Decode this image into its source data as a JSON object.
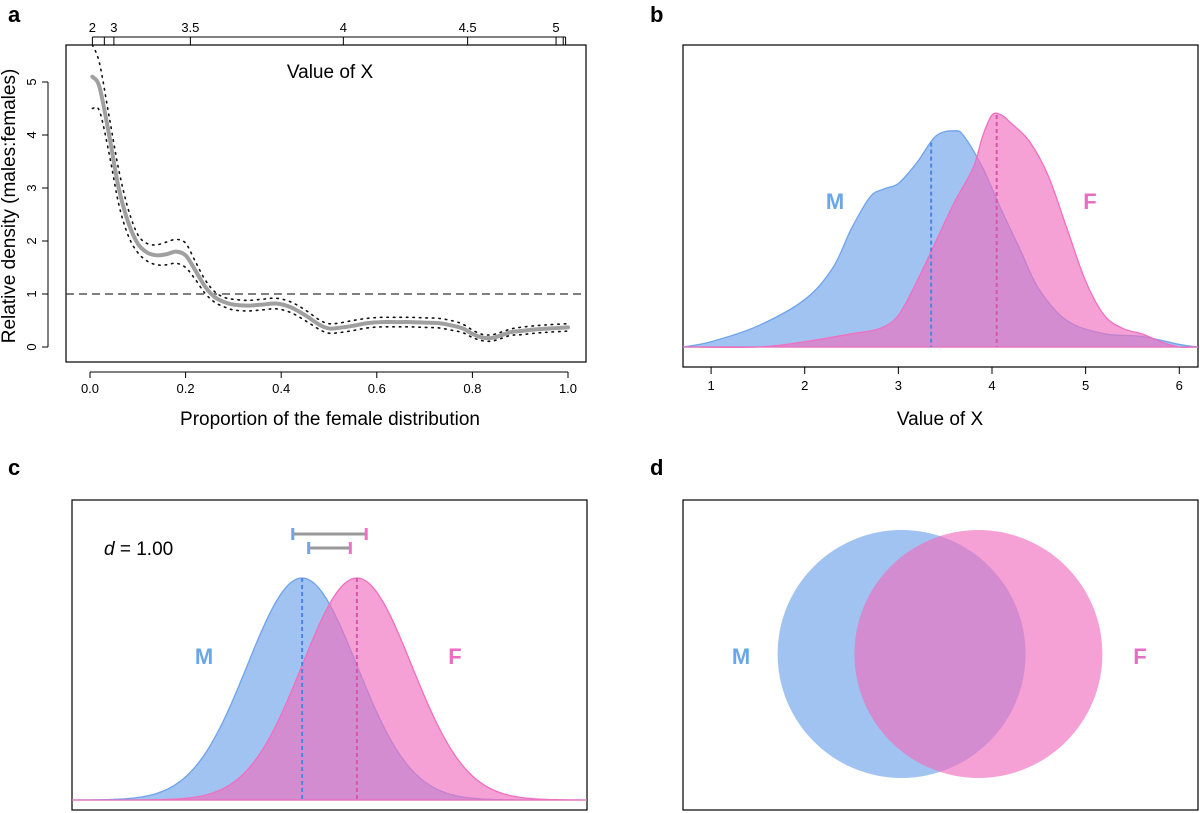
{
  "colors": {
    "male": "#6fa3ea",
    "female": "#f06fbe",
    "male_label": "#6aa6e8",
    "female_label": "#e86dc3",
    "curve": "#a0a0a0",
    "axis": "#000000"
  },
  "chart_data": [
    {
      "panel": "a",
      "type": "line",
      "xlabel": "Proportion of the female distribution",
      "ylabel": "Relative density (males:females)",
      "top_axis_label": "Value of X",
      "xlim": [
        0.0,
        1.0
      ],
      "ylim": [
        0,
        5.5
      ],
      "x_ticks": [
        "0.0",
        "0.2",
        "0.4",
        "0.6",
        "0.8",
        "1.0"
      ],
      "y_ticks": [
        "0",
        "1",
        "2",
        "3",
        "4",
        "5"
      ],
      "top_ticks": [
        {
          "label": "2",
          "x": 0.005
        },
        {
          "label": "3",
          "x": 0.05
        },
        {
          "label": "3.5",
          "x": 0.21
        },
        {
          "label": "4",
          "x": 0.53
        },
        {
          "label": "4.5",
          "x": 0.79
        },
        {
          "label": "5",
          "x": 0.975
        }
      ],
      "top_extra_ticks": [
        0.03,
        0.99,
        0.995
      ],
      "reference_line": 1,
      "x": [
        0.005,
        0.02,
        0.04,
        0.06,
        0.08,
        0.1,
        0.12,
        0.14,
        0.16,
        0.18,
        0.2,
        0.22,
        0.24,
        0.26,
        0.28,
        0.3,
        0.33,
        0.36,
        0.39,
        0.42,
        0.45,
        0.48,
        0.5,
        0.52,
        0.55,
        0.58,
        0.61,
        0.64,
        0.67,
        0.7,
        0.73,
        0.76,
        0.78,
        0.8,
        0.82,
        0.84,
        0.86,
        0.88,
        0.9,
        0.93,
        0.96,
        1.0
      ],
      "y": [
        5.1,
        4.9,
        4.0,
        3.0,
        2.35,
        1.95,
        1.78,
        1.73,
        1.75,
        1.8,
        1.73,
        1.45,
        1.15,
        0.95,
        0.85,
        0.8,
        0.78,
        0.8,
        0.82,
        0.75,
        0.6,
        0.42,
        0.35,
        0.36,
        0.4,
        0.45,
        0.47,
        0.47,
        0.47,
        0.46,
        0.45,
        0.4,
        0.35,
        0.25,
        0.18,
        0.17,
        0.22,
        0.28,
        0.3,
        0.33,
        0.35,
        0.37
      ],
      "ci_upper": [
        5.7,
        5.35,
        4.35,
        3.35,
        2.6,
        2.12,
        1.95,
        1.93,
        1.98,
        2.03,
        1.96,
        1.62,
        1.28,
        1.05,
        0.94,
        0.9,
        0.88,
        0.9,
        0.92,
        0.85,
        0.7,
        0.51,
        0.44,
        0.45,
        0.5,
        0.54,
        0.56,
        0.56,
        0.56,
        0.55,
        0.54,
        0.49,
        0.43,
        0.32,
        0.24,
        0.23,
        0.28,
        0.34,
        0.37,
        0.4,
        0.42,
        0.44
      ],
      "ci_lower": [
        4.5,
        4.45,
        3.65,
        2.7,
        2.1,
        1.78,
        1.62,
        1.55,
        1.55,
        1.58,
        1.5,
        1.28,
        1.02,
        0.85,
        0.76,
        0.7,
        0.68,
        0.7,
        0.72,
        0.65,
        0.5,
        0.33,
        0.26,
        0.27,
        0.31,
        0.36,
        0.38,
        0.38,
        0.38,
        0.37,
        0.36,
        0.31,
        0.27,
        0.18,
        0.12,
        0.11,
        0.16,
        0.22,
        0.23,
        0.26,
        0.28,
        0.3
      ]
    },
    {
      "panel": "b",
      "type": "area",
      "xlabel": "Value of X",
      "xlim": [
        0.7,
        6.2
      ],
      "ylim": [
        0,
        1.0
      ],
      "x_ticks": [
        "1",
        "2",
        "3",
        "4",
        "5",
        "6"
      ],
      "series": [
        {
          "name": "M",
          "x": [
            0.7,
            1.0,
            1.5,
            2.0,
            2.3,
            2.5,
            2.7,
            2.85,
            3.0,
            3.2,
            3.4,
            3.6,
            3.7,
            3.9,
            4.1,
            4.3,
            4.5,
            4.8,
            5.2,
            5.6,
            6.0,
            6.2
          ],
          "y": [
            0.0,
            0.02,
            0.08,
            0.18,
            0.3,
            0.45,
            0.57,
            0.6,
            0.62,
            0.7,
            0.8,
            0.82,
            0.8,
            0.68,
            0.52,
            0.37,
            0.22,
            0.1,
            0.05,
            0.04,
            0.01,
            0.0
          ],
          "mean": 3.35
        },
        {
          "name": "F",
          "x": [
            0.7,
            1.5,
            2.0,
            2.5,
            2.8,
            3.0,
            3.2,
            3.4,
            3.6,
            3.8,
            3.9,
            4.0,
            4.1,
            4.2,
            4.4,
            4.6,
            4.8,
            5.0,
            5.2,
            5.4,
            5.6,
            5.8,
            6.0,
            6.2
          ],
          "y": [
            0.0,
            0.0,
            0.02,
            0.05,
            0.07,
            0.12,
            0.25,
            0.4,
            0.55,
            0.68,
            0.8,
            0.88,
            0.88,
            0.85,
            0.78,
            0.65,
            0.45,
            0.25,
            0.12,
            0.07,
            0.05,
            0.02,
            0.0,
            0.0
          ],
          "mean": 4.05
        }
      ]
    },
    {
      "panel": "c",
      "type": "area",
      "annotation_d": "d",
      "annotation_value": "= 1.00",
      "xlim": [
        -4.2,
        5.2
      ],
      "series": [
        {
          "name": "M",
          "mean": 0.0,
          "sd": 1.0
        },
        {
          "name": "F",
          "mean": 1.0,
          "sd": 1.0
        }
      ],
      "interval_bars": [
        {
          "from": -0.17,
          "to": 1.17
        },
        {
          "from": 0.12,
          "to": 0.88
        }
      ]
    },
    {
      "panel": "d",
      "type": "venn",
      "sets": [
        {
          "name": "M",
          "size": 1.0
        },
        {
          "name": "F",
          "size": 1.0
        }
      ],
      "center_separation": 0.62
    }
  ],
  "panel_labels": [
    "a",
    "b",
    "c",
    "d"
  ]
}
